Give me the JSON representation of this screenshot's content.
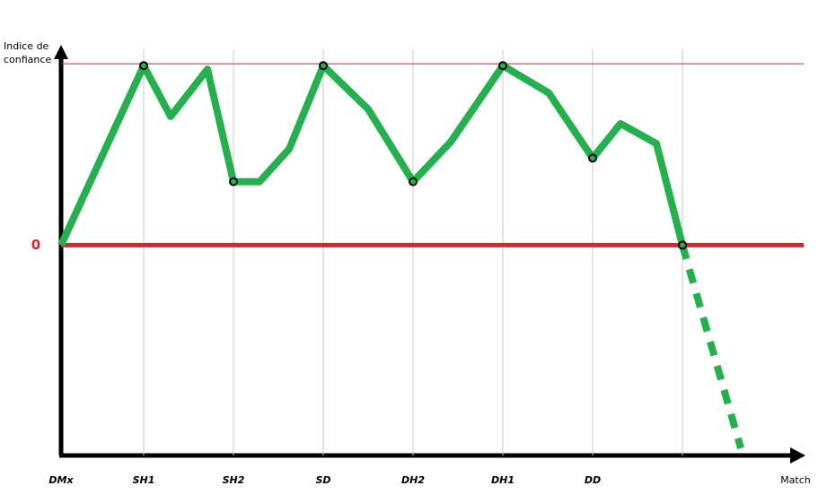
{
  "chart_data": {
    "type": "line",
    "y_label": "Indice de\nconfiance",
    "x_label": "Match",
    "xlim": [
      0.08,
      8.35
    ],
    "ylim": [
      -116,
      108
    ],
    "xticks": [
      {
        "value": 0.08,
        "label": "DMx"
      },
      {
        "value": 1,
        "label": "SH1"
      },
      {
        "value": 2,
        "label": "SH2"
      },
      {
        "value": 3,
        "label": "SD"
      },
      {
        "value": 4,
        "label": "DH2"
      },
      {
        "value": 5,
        "label": "DH1"
      },
      {
        "value": 6,
        "label": "DD"
      },
      {
        "value": 7,
        "label": null
      }
    ],
    "yticks": [
      0
    ],
    "ytick_color": "#d9262e",
    "grid": true,
    "reference_line": {
      "value": 100,
      "color": "#d9262e"
    },
    "series": [
      {
        "color": "#22b14c",
        "style": "solid",
        "x": [
          0.08,
          1,
          1.3,
          1.71,
          2,
          2.29,
          2.62,
          3,
          3.5,
          4,
          4.42,
          5,
          5.51,
          6,
          6.31,
          6.71,
          7
        ],
        "values": [
          0,
          99,
          71,
          97,
          35,
          35,
          53,
          99,
          75,
          35,
          57,
          99,
          84,
          48,
          67,
          56,
          0
        ]
      },
      {
        "color": "#22b14c",
        "style": "dashed",
        "x": [
          7,
          7.65
        ],
        "values": [
          0,
          -112
        ]
      },
      {
        "color": "#000000",
        "style": "markers",
        "x": [
          1,
          2,
          3,
          4,
          5,
          6,
          7
        ],
        "values": [
          99,
          35,
          99,
          35,
          99,
          48,
          0
        ]
      }
    ]
  }
}
